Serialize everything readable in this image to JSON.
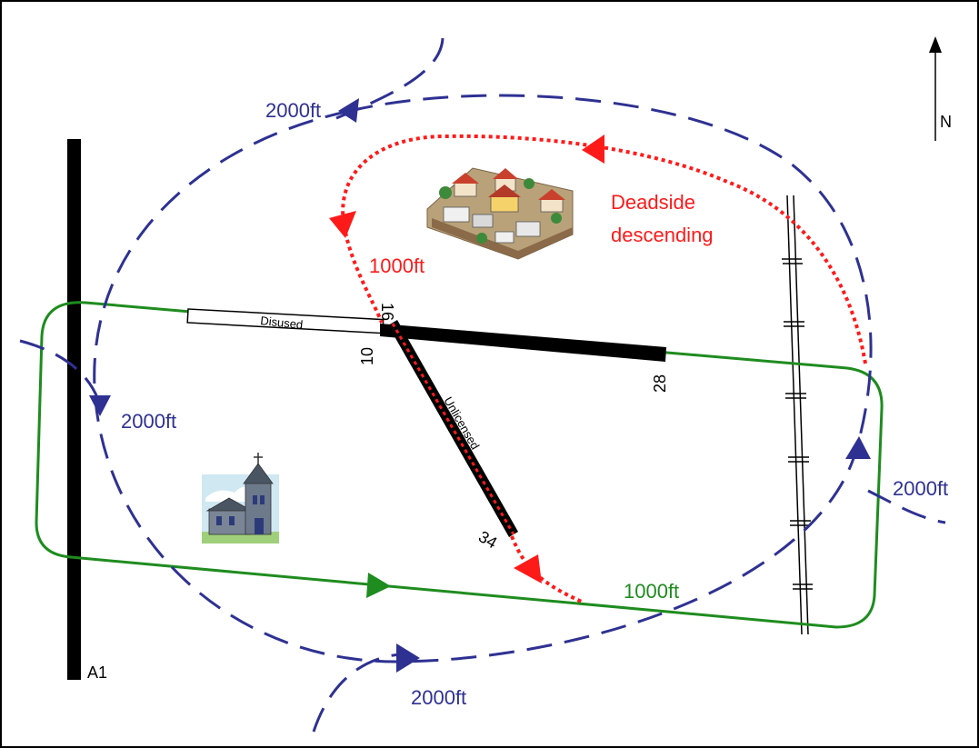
{
  "north_label": "N",
  "road_label": "A1",
  "runways": {
    "disused_label": "Disused",
    "unlicensed_label": "Unlicensed",
    "ends": {
      "r10": "10",
      "r16": "16",
      "r28": "28",
      "r34": "34"
    }
  },
  "circuits": {
    "deadside_line1": "Deadside",
    "deadside_line2": "descending",
    "red_1000": "1000ft",
    "green_1000": "1000ft",
    "blue_2000_top": "2000ft",
    "blue_2000_left": "2000ft",
    "blue_2000_right": "2000ft",
    "blue_2000_bottom": "2000ft"
  },
  "colors": {
    "blue_circuit": "#2e3192",
    "red_descent": "#ff1a1a",
    "green_circuit": "#1e8c1e",
    "runway": "#000000"
  },
  "icons": [
    "houses-icon",
    "church-icon",
    "north-arrow-icon"
  ]
}
